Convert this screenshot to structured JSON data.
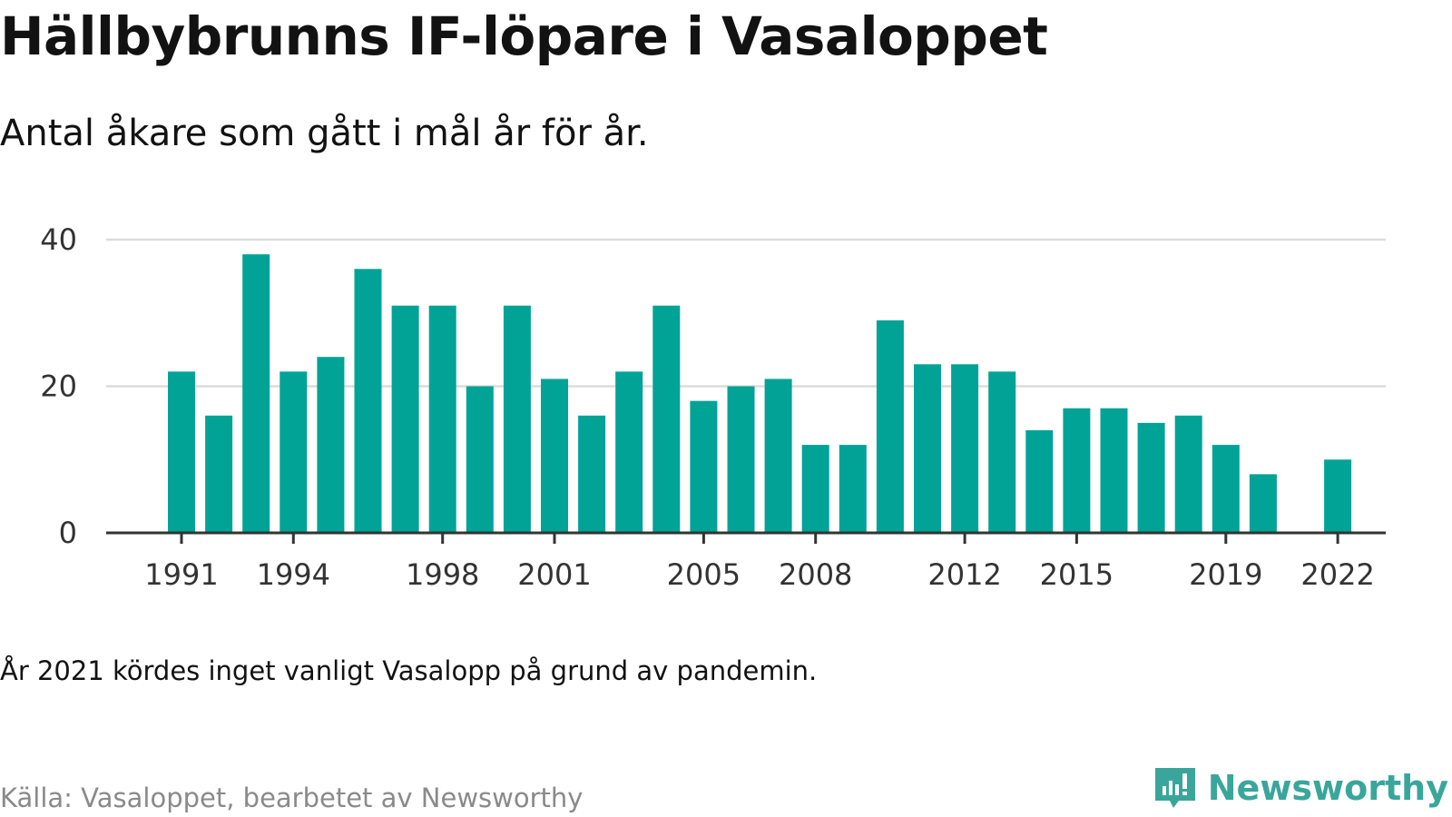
{
  "title": "Hällbybrunns IF-löpare i Vasaloppet",
  "subtitle": "Antal åkare som gått i mål år för år.",
  "note": "År 2021 kördes inget vanligt Vasalopp på grund av pandemin.",
  "source": "Källa: Vasaloppet, bearbetet av Newsworthy",
  "brand": {
    "name": "Newsworthy",
    "icon": "newsworthy-logo-icon",
    "color": "#3aa69b"
  },
  "colors": {
    "bar": "#00a396",
    "grid": "#dcdcdc",
    "axis": "#333333"
  },
  "chart_data": {
    "type": "bar",
    "categories": [
      "1991",
      "1992",
      "1993",
      "1994",
      "1995",
      "1996",
      "1997",
      "1998",
      "1999",
      "2000",
      "2001",
      "2002",
      "2003",
      "2004",
      "2005",
      "2006",
      "2007",
      "2008",
      "2009",
      "2010",
      "2011",
      "2012",
      "2013",
      "2014",
      "2015",
      "2016",
      "2017",
      "2018",
      "2019",
      "2020",
      "2021",
      "2022"
    ],
    "values": [
      22,
      16,
      38,
      22,
      24,
      36,
      31,
      31,
      20,
      31,
      21,
      16,
      22,
      31,
      18,
      20,
      21,
      12,
      12,
      29,
      23,
      23,
      22,
      14,
      17,
      17,
      15,
      16,
      12,
      8,
      null,
      10
    ],
    "x_tick_labels": [
      "1991",
      "1994",
      "1998",
      "2001",
      "2005",
      "2008",
      "2012",
      "2015",
      "2019",
      "2022"
    ],
    "y_ticks": [
      0,
      20,
      40
    ],
    "ylim": [
      0,
      40
    ],
    "title": "Hällbybrunns IF-löpare i Vasaloppet",
    "xlabel": "",
    "ylabel": "",
    "grid": true
  }
}
